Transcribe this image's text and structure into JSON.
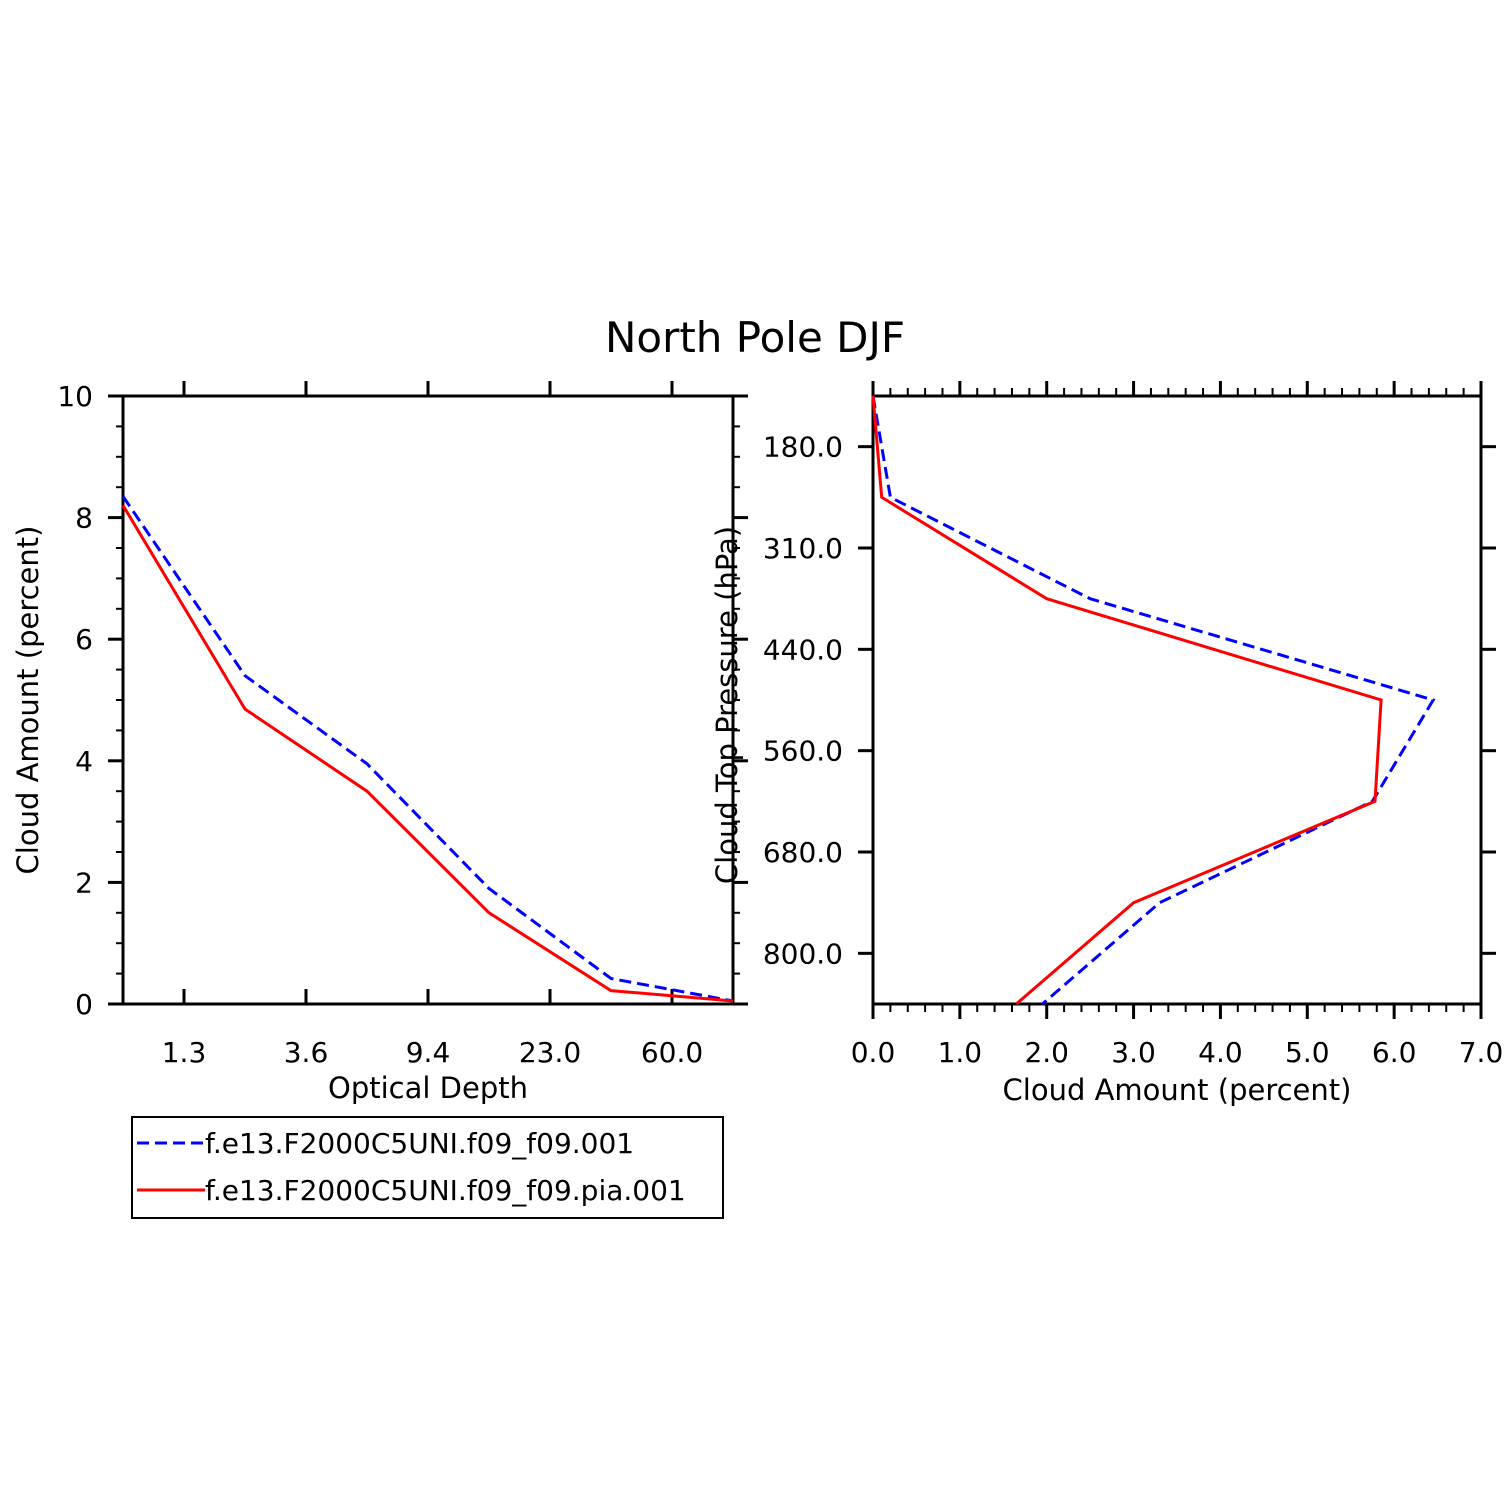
{
  "title": "North Pole DJF",
  "colors": {
    "series1": "#0000ff",
    "series2": "#ff0000",
    "axis": "#000000",
    "background": "#ffffff"
  },
  "chart_data": [
    {
      "type": "line",
      "xlabel": "Optical Depth",
      "ylabel": "Cloud Amount (percent)",
      "x_tick_labels": [
        "1.3",
        "3.6",
        "9.4",
        "23.0",
        "60.0"
      ],
      "x_tick_positions": [
        1,
        3,
        5,
        7,
        9
      ],
      "xlim": [
        0,
        10
      ],
      "y_tick_labels": [
        "0",
        "2",
        "4",
        "6",
        "8",
        "10"
      ],
      "y_ticks": [
        0,
        2,
        4,
        6,
        8,
        10
      ],
      "ylim": [
        0,
        10
      ],
      "x": [
        0,
        2,
        4,
        6,
        8,
        10
      ],
      "series": [
        {
          "name": "f.e13.F2000C5UNI.f09_f09.001",
          "style": "dashed",
          "values": [
            8.35,
            5.4,
            3.95,
            1.9,
            0.42,
            0.05
          ]
        },
        {
          "name": "f.e13.F2000C5UNI.f09_f09.pia.001",
          "style": "solid",
          "values": [
            8.2,
            4.85,
            3.5,
            1.5,
            0.22,
            0.05
          ]
        }
      ]
    },
    {
      "type": "line",
      "xlabel": "Cloud Amount (percent)",
      "ylabel": "Cloud Top Pressure (hPa)",
      "x_tick_labels": [
        "0.0",
        "1.0",
        "2.0",
        "3.0",
        "4.0",
        "5.0",
        "6.0",
        "7.0"
      ],
      "x_ticks": [
        0,
        1,
        2,
        3,
        4,
        5,
        6,
        7
      ],
      "xlim": [
        0,
        7
      ],
      "y_tick_labels": [
        "180.0",
        "310.0",
        "440.0",
        "560.0",
        "680.0",
        "800.0"
      ],
      "y_tick_positions": [
        0.5,
        1.5,
        2.5,
        3.5,
        4.5,
        5.5
      ],
      "ylim": [
        0,
        6
      ],
      "y": [
        0,
        1,
        2,
        3,
        4,
        5,
        6
      ],
      "series": [
        {
          "name": "f.e13.F2000C5UNI.f09_f09.001",
          "style": "dashed",
          "values": [
            0.0,
            0.2,
            2.5,
            6.45,
            5.75,
            3.3,
            1.95
          ]
        },
        {
          "name": "f.e13.F2000C5UNI.f09_f09.pia.001",
          "style": "solid",
          "values": [
            0.0,
            0.1,
            2.0,
            5.85,
            5.78,
            3.0,
            1.65
          ]
        }
      ]
    }
  ],
  "legend": [
    {
      "label": "f.e13.F2000C5UNI.f09_f09.001",
      "style": "dashed"
    },
    {
      "label": "f.e13.F2000C5UNI.f09_f09.pia.001",
      "style": "solid"
    }
  ]
}
